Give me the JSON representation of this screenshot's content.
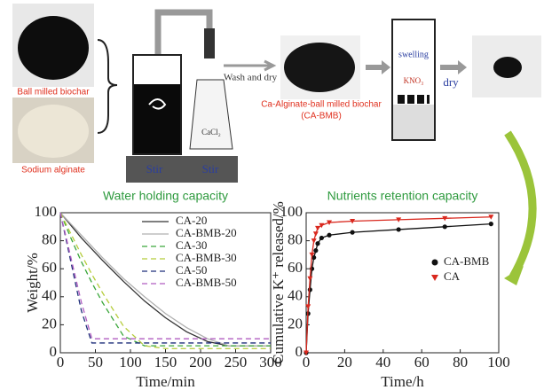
{
  "diagram": {
    "biochar_label": "Ball milled biochar",
    "alginate_label": "Sodium alginate",
    "stir_left": "Stir",
    "stir_right": "Stir",
    "cacl2": "CaCl₂",
    "wash_label": "Wash and dry",
    "product_label_1": "Ca-Alginate-ball milled biochar",
    "product_label_2": "(CA-BMB)",
    "swelling": "swelling",
    "kno3": "KNO₃",
    "dry": "dry"
  },
  "chart_data": [
    {
      "type": "line",
      "title": "Water holding capacity",
      "x_label": "Time/min",
      "y_label": "Weight/%",
      "x": [
        0,
        15,
        30,
        45,
        60,
        90,
        120,
        150,
        180,
        210,
        240,
        270,
        300
      ],
      "xlim": [
        0,
        300
      ],
      "xticks": [
        0,
        50,
        100,
        150,
        200,
        250,
        300
      ],
      "ylim": [
        0,
        100
      ],
      "yticks": [
        0,
        20,
        40,
        60,
        80,
        100
      ],
      "legend": "upper right",
      "series": [
        {
          "name": "CA-20",
          "color": "#333333",
          "dash": false,
          "values": [
            100,
            91,
            82,
            74,
            66,
            51,
            37,
            25,
            15,
            8,
            5,
            5,
            5
          ]
        },
        {
          "name": "CA-BMB-20",
          "color": "#b0b0b0",
          "dash": false,
          "values": [
            100,
            92,
            84,
            76,
            68,
            53,
            40,
            28,
            18,
            10,
            5,
            5,
            5
          ]
        },
        {
          "name": "CA-30",
          "color": "#3aa63a",
          "dash": true,
          "values": [
            100,
            82,
            65,
            50,
            36,
            12,
            5,
            5,
            5,
            5,
            5,
            5,
            5
          ]
        },
        {
          "name": "CA-BMB-30",
          "color": "#b5cc3a",
          "dash": true,
          "values": [
            100,
            85,
            70,
            56,
            43,
            19,
            5,
            3,
            3,
            3,
            3,
            3,
            3
          ]
        },
        {
          "name": "CA-50",
          "color": "#1f2f7a",
          "dash": true,
          "values": [
            100,
            65,
            30,
            7,
            7,
            7,
            7,
            7,
            7,
            7,
            7,
            7,
            7
          ]
        },
        {
          "name": "CA-BMB-50",
          "color": "#b05cc0",
          "dash": true,
          "values": [
            100,
            68,
            36,
            10,
            10,
            10,
            10,
            10,
            10,
            10,
            10,
            10,
            10
          ]
        }
      ]
    },
    {
      "type": "line",
      "title": "Nutrients retention capacity",
      "x_label": "Time/h",
      "y_label": "Cumulative K⁺ released/%",
      "x": [
        0,
        1,
        2,
        3,
        4,
        5,
        6,
        8,
        12,
        24,
        48,
        72,
        96
      ],
      "xlim": [
        0,
        100
      ],
      "xticks": [
        0,
        20,
        40,
        60,
        80,
        100
      ],
      "ylim": [
        0,
        100
      ],
      "yticks": [
        0,
        20,
        40,
        60,
        80,
        100
      ],
      "legend": "center right",
      "series": [
        {
          "name": "CA-BMB",
          "color": "#111111",
          "marker": "circle",
          "values": [
            0,
            28,
            45,
            60,
            68,
            73,
            78,
            82,
            84,
            86,
            88,
            90,
            92
          ]
        },
        {
          "name": "CA",
          "color": "#d9281e",
          "marker": "triangle",
          "values": [
            0,
            33,
            53,
            70,
            80,
            85,
            89,
            91,
            93,
            94,
            95,
            96,
            97
          ]
        }
      ]
    }
  ]
}
